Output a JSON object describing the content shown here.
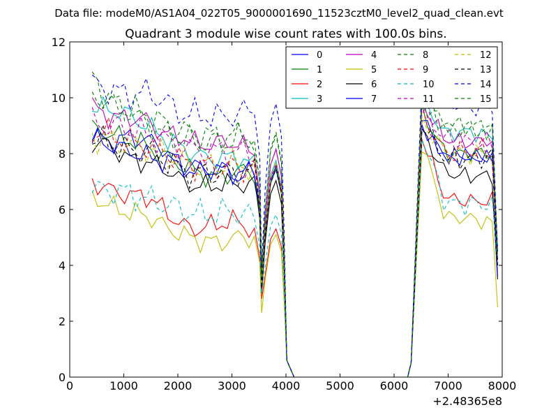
{
  "suptitle": "Data file: modeM0/AS1A04_022T05_9000001690_11523cztM0_level2_quad_clean.evt",
  "chart_data": {
    "type": "line",
    "title": "Quadrant 3 module wise count rates with 100.0s bins.",
    "xlabel": "",
    "ylabel": "",
    "x_offset_label": "+2.48365e8",
    "xlim": [
      0,
      8000
    ],
    "ylim": [
      0,
      12
    ],
    "xticks": [
      0,
      1000,
      2000,
      3000,
      4000,
      5000,
      6000,
      7000,
      8000
    ],
    "yticks": [
      0,
      2,
      4,
      6,
      8,
      10,
      12
    ],
    "grid": false,
    "legend_position": "top-right",
    "legend_columns": 4,
    "x_segment1": [
      415,
      4015
    ],
    "x_segment2": [
      6315,
      7915
    ],
    "bin_seconds": 100,
    "series": [
      {
        "name": "0",
        "color": "#0000ff",
        "dash": "solid",
        "profile": [
          8.7,
          8.4,
          8.6,
          8.5,
          8.2,
          7.5,
          7.3,
          7.5,
          7.2,
          7.3
        ],
        "dip": 3.2,
        "profile2": [
          9.3,
          7.8,
          7.9,
          7.8,
          4.2
        ]
      },
      {
        "name": "1",
        "color": "#008000",
        "dash": "solid",
        "profile": [
          8.9,
          8.7,
          8.5,
          8.3,
          7.9,
          7.6,
          7.3,
          7.1,
          7.4,
          7.3
        ],
        "dip": 3.5,
        "profile2": [
          9.5,
          8.0,
          8.0,
          8.0,
          4.6
        ]
      },
      {
        "name": "2",
        "color": "#ff0000",
        "dash": "solid",
        "profile": [
          7.0,
          6.7,
          6.5,
          6.5,
          6.0,
          5.4,
          5.3,
          5.5,
          5.6,
          5.2
        ],
        "dip": 2.8,
        "profile2": [
          8.6,
          6.4,
          6.3,
          6.3,
          4.0
        ]
      },
      {
        "name": "3",
        "color": "#00bfbf",
        "dash": "solid",
        "profile": [
          9.6,
          9.6,
          9.4,
          9.0,
          8.6,
          8.2,
          7.9,
          7.8,
          7.9,
          7.6
        ],
        "dip": 3.4,
        "profile2": [
          9.9,
          8.7,
          8.8,
          8.6,
          4.4
        ]
      },
      {
        "name": "4",
        "color": "#bf00bf",
        "dash": "solid",
        "profile": [
          9.7,
          9.3,
          9.3,
          9.2,
          8.7,
          8.6,
          8.3,
          8.4,
          8.4,
          8.0
        ],
        "dip": 3.6,
        "profile2": [
          9.8,
          8.5,
          8.4,
          8.5,
          4.5
        ]
      },
      {
        "name": "5",
        "color": "#bfbf00",
        "dash": "solid",
        "profile": [
          6.5,
          6.1,
          5.9,
          5.8,
          5.4,
          5.1,
          4.9,
          4.8,
          5.0,
          5.0
        ],
        "dip": 2.3,
        "profile2": [
          8.4,
          5.7,
          5.7,
          5.5,
          2.5
        ]
      },
      {
        "name": "6",
        "color": "#000000",
        "dash": "solid",
        "profile": [
          8.4,
          8.3,
          7.8,
          7.7,
          7.5,
          7.0,
          6.8,
          6.9,
          6.9,
          6.9
        ],
        "dip": 3.0,
        "profile2": [
          8.8,
          7.3,
          7.2,
          7.2,
          3.5
        ]
      },
      {
        "name": "7",
        "color": "#0000ff",
        "dash": "solid",
        "profile": [
          8.5,
          8.3,
          8.1,
          7.9,
          7.7,
          7.6,
          7.5,
          7.4,
          7.3,
          7.4
        ],
        "dip": 3.2,
        "profile2": [
          9.0,
          7.9,
          7.9,
          7.9,
          3.6
        ]
      },
      {
        "name": "8",
        "color": "#008000",
        "dash": "dashed",
        "profile": [
          10.8,
          9.9,
          9.5,
          9.1,
          8.7,
          8.5,
          8.4,
          8.4,
          8.5,
          8.6
        ],
        "dip": 3.7,
        "profile2": [
          10.1,
          8.9,
          8.9,
          8.8,
          4.2
        ]
      },
      {
        "name": "9",
        "color": "#ff0000",
        "dash": "dashed",
        "profile": [
          8.8,
          8.7,
          8.4,
          8.3,
          8.1,
          7.7,
          7.6,
          7.5,
          7.5,
          7.5
        ],
        "dip": 3.3,
        "profile2": [
          9.4,
          8.0,
          8.1,
          8.1,
          4.1
        ]
      },
      {
        "name": "10",
        "color": "#00bfbf",
        "dash": "dashed",
        "profile": [
          6.7,
          6.7,
          6.6,
          6.4,
          6.2,
          6.0,
          5.8,
          5.9,
          5.9,
          5.7
        ],
        "dip": 3.0,
        "profile2": [
          8.7,
          6.2,
          6.2,
          6.2,
          4.0
        ]
      },
      {
        "name": "11",
        "color": "#bf00bf",
        "dash": "dashed",
        "profile": [
          9.1,
          9.0,
          8.9,
          8.7,
          8.5,
          8.2,
          8.1,
          8.1,
          8.1,
          8.0
        ],
        "dip": 3.5,
        "profile2": [
          9.6,
          8.5,
          8.4,
          8.4,
          4.6
        ]
      },
      {
        "name": "12",
        "color": "#bfbf00",
        "dash": "dashed",
        "profile": [
          8.6,
          8.5,
          8.3,
          8.2,
          8.0,
          7.7,
          7.5,
          7.6,
          7.6,
          7.5
        ],
        "dip": 3.3,
        "profile2": [
          9.2,
          8.0,
          8.0,
          8.0,
          4.3
        ]
      },
      {
        "name": "13",
        "color": "#000000",
        "dash": "dashed",
        "profile": [
          8.5,
          8.4,
          8.1,
          8.1,
          7.8,
          7.4,
          7.3,
          7.3,
          7.4,
          7.3
        ],
        "dip": 3.2,
        "profile2": [
          9.1,
          7.8,
          7.8,
          7.9,
          4.0
        ]
      },
      {
        "name": "14",
        "color": "#0000ff",
        "dash": "dashed",
        "profile": [
          10.5,
          10.3,
          10.1,
          10.2,
          9.9,
          9.4,
          9.4,
          9.3,
          9.4,
          9.6
        ],
        "dip": 3.9,
        "profile2": [
          10.4,
          9.8,
          9.7,
          9.6,
          4.5
        ]
      },
      {
        "name": "15",
        "color": "#008000",
        "dash": "dashed",
        "profile": [
          10.2,
          9.7,
          9.6,
          9.4,
          9.1,
          8.8,
          8.7,
          8.6,
          8.7,
          8.5
        ],
        "dip": 3.6,
        "profile2": [
          9.9,
          9.0,
          9.0,
          8.9,
          4.4
        ]
      }
    ]
  }
}
